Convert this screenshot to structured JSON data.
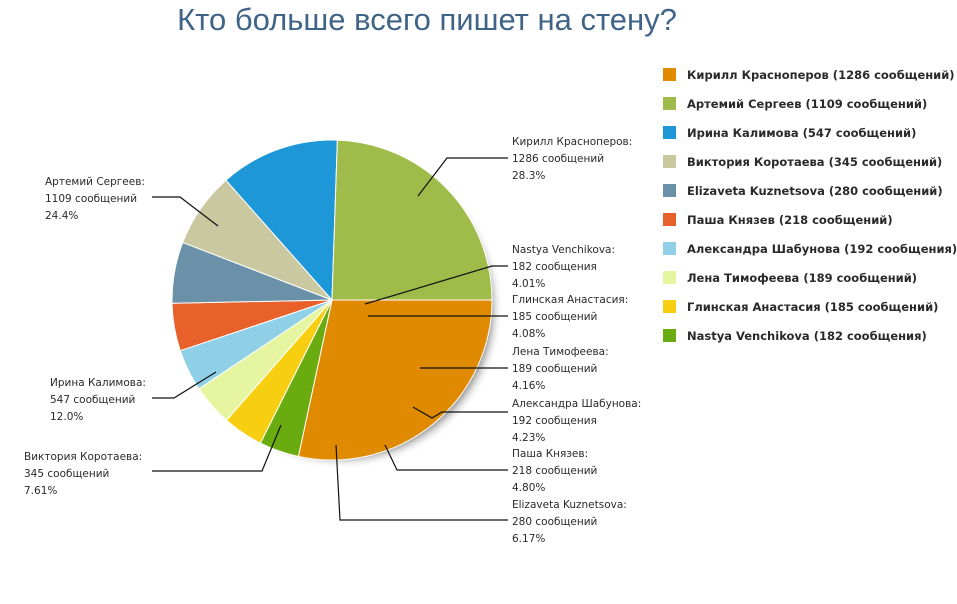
{
  "chart_data": {
    "type": "pie",
    "title": "Кто больше всего пишет на стену?",
    "legend_position": "right",
    "slices": [
      {
        "name": "Кирилл Красноперов",
        "value": 1286,
        "percent": 28.3,
        "color": "#e08a00",
        "legend": "Кирилл Красноперов (1286 сообщений)",
        "callout": [
          "Кирилл Красноперов:",
          "1286 сообщений",
          "28.3%"
        ]
      },
      {
        "name": "Nastya Venchikova",
        "value": 182,
        "percent": 4.01,
        "color": "#6aab10",
        "legend": "Nastya Venchikova (182 сообщения)",
        "callout": [
          "Nastya Venchikova:",
          "182 сообщения",
          "4.01%"
        ]
      },
      {
        "name": "Глинская Анастасия",
        "value": 185,
        "percent": 4.08,
        "color": "#f7cf10",
        "legend": "Глинская Анастасия (185 сообщений)",
        "callout": [
          "Глинская Анастасия:",
          "185 сообщений",
          "4.08%"
        ]
      },
      {
        "name": "Лена Тимофеева",
        "value": 189,
        "percent": 4.16,
        "color": "#e6f5a0",
        "legend": "Лена Тимофеева (189 сообщений)",
        "callout": [
          "Лена Тимофеева:",
          "189 сообщений",
          "4.16%"
        ]
      },
      {
        "name": "Александра Шабунова",
        "value": 192,
        "percent": 4.23,
        "color": "#8fd0e6",
        "legend": "Александра Шабунова (192 сообщения)",
        "callout": [
          "Александра Шабунова:",
          "192 сообщения",
          "4.23%"
        ]
      },
      {
        "name": "Паша Князев",
        "value": 218,
        "percent": 4.8,
        "color": "#e8602a",
        "legend": "Паша Князев (218 сообщений)",
        "callout": [
          "Паша Князев:",
          "218 сообщений",
          "4.80%"
        ]
      },
      {
        "name": "Elizaveta Kuznetsova",
        "value": 280,
        "percent": 6.17,
        "color": "#6a91a8",
        "legend": "Elizaveta Kuznetsova (280 сообщений)",
        "callout": [
          "Elizaveta Kuznetsova:",
          "280 сообщений",
          "6.17%"
        ]
      },
      {
        "name": "Виктория Коротаева",
        "value": 345,
        "percent": 7.61,
        "color": "#c9c8a0",
        "legend": "Виктория Коротаева (345 сообщений)",
        "callout": [
          "Виктория Коротаева:",
          "345 сообщений",
          "7.61%"
        ]
      },
      {
        "name": "Ирина Калимова",
        "value": 547,
        "percent": 12.0,
        "color": "#1e97d8",
        "legend": "Ирина Калимова (547 сообщений)",
        "callout": [
          "Ирина Калимова:",
          "547 сообщений",
          "12.0%"
        ]
      },
      {
        "name": "Артемий Сергеев",
        "value": 1109,
        "percent": 24.4,
        "color": "#9fbb4a",
        "legend": "Артемий Сергеев (1109 сообщений)",
        "callout": [
          "Артемий Сергеев:",
          "1109 сообщений",
          "24.4%"
        ]
      }
    ],
    "legend_order": [
      "Кирилл Красноперов",
      "Артемий Сергеев",
      "Ирина Калимова",
      "Виктория Коротаева",
      "Elizaveta Kuznetsova",
      "Паша Князев",
      "Александра Шабунова",
      "Лена Тимофеева",
      "Глинская Анастасия",
      "Nastya Venchikova"
    ]
  }
}
